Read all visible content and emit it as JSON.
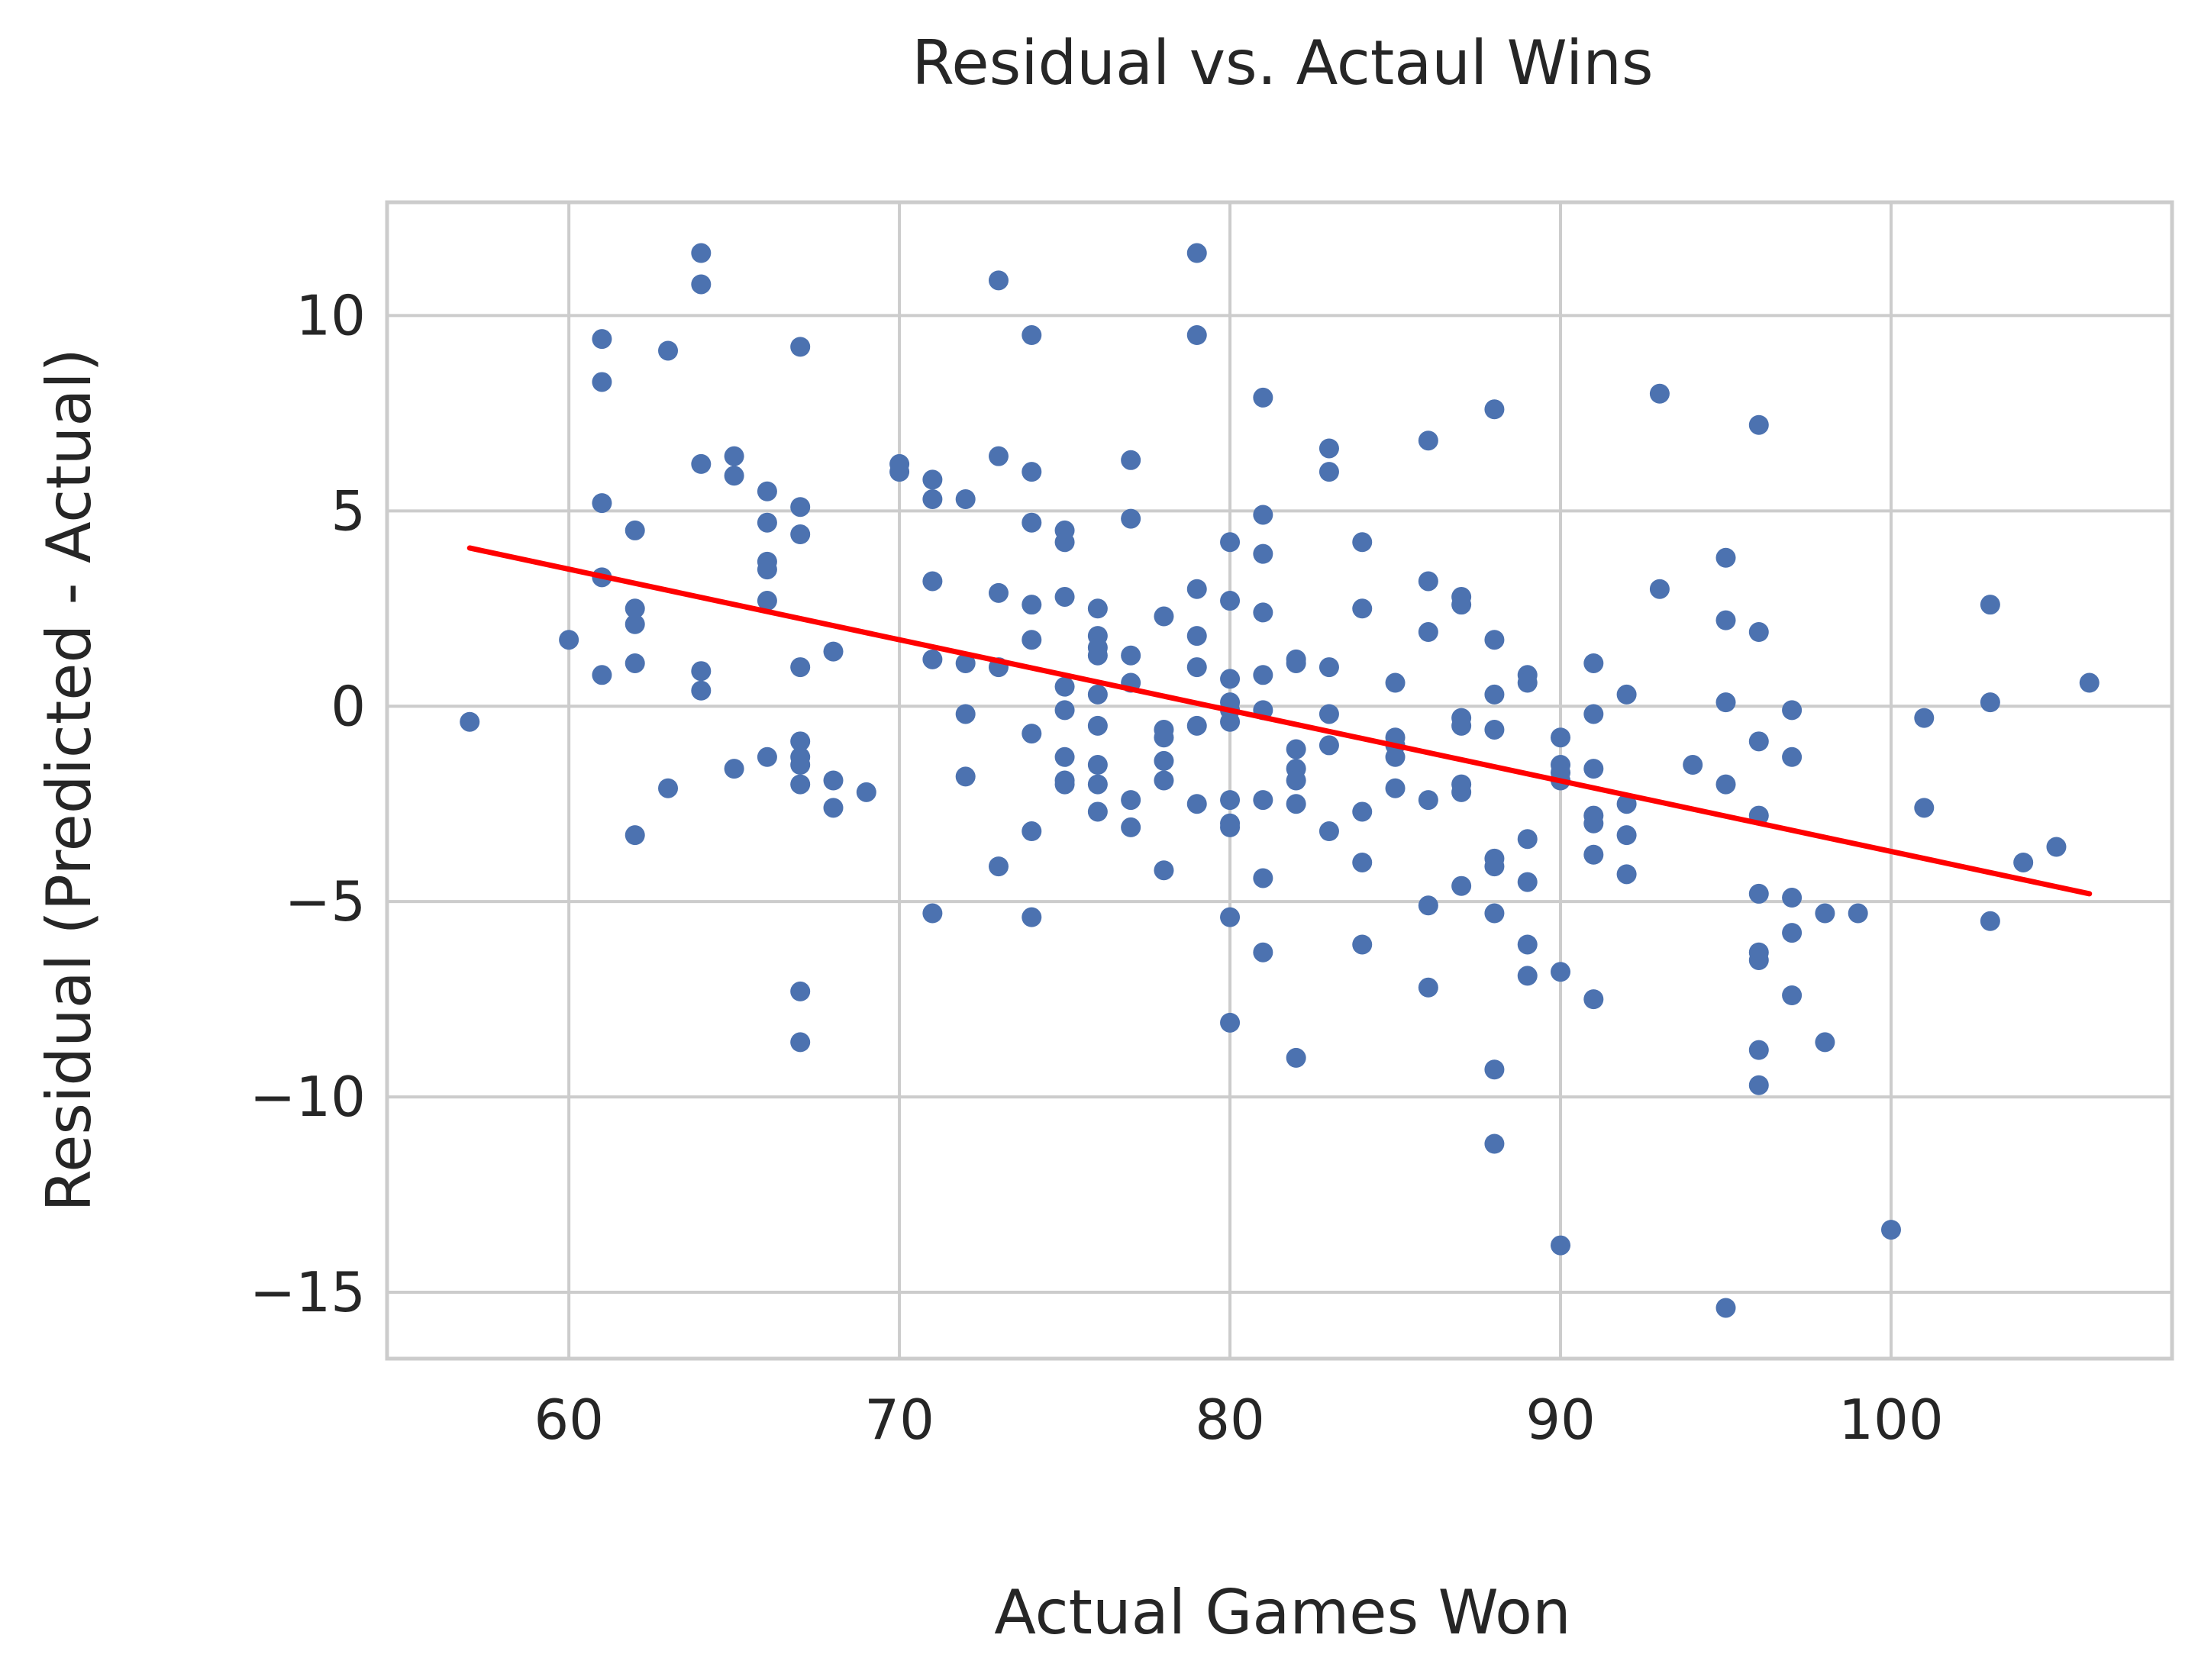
{
  "chart_data": {
    "type": "scatter",
    "title": "Residual vs. Actaul Wins",
    "xlabel": "Actual Games Won",
    "ylabel": "Residual (Predicted - Actual)",
    "xlim": [
      54.5,
      108.5
    ],
    "ylim": [
      -16.7,
      12.9
    ],
    "xticks": [
      60,
      70,
      80,
      90,
      100
    ],
    "xtick_labels": [
      "60",
      "70",
      "80",
      "90",
      "100"
    ],
    "yticks": [
      10,
      5,
      0,
      -5,
      -10,
      -15
    ],
    "ytick_labels": [
      "10",
      "5",
      "0",
      "−5",
      "−10",
      "−15"
    ],
    "grid": true,
    "colors": {
      "points": "#4c72b0",
      "fit_line": "#ff0000",
      "grid": "#cccccc",
      "text": "#262626"
    },
    "series": [
      {
        "kind": "scatter",
        "points": [
          [
            57,
            -0.4
          ],
          [
            60,
            1.7
          ],
          [
            61,
            9.4
          ],
          [
            61,
            8.3
          ],
          [
            61,
            5.2
          ],
          [
            61,
            3.3
          ],
          [
            61,
            0.8
          ],
          [
            62,
            4.5
          ],
          [
            62,
            2.5
          ],
          [
            62,
            2.1
          ],
          [
            62,
            1.1
          ],
          [
            62,
            -3.3
          ],
          [
            63,
            9.1
          ],
          [
            63,
            -2.1
          ],
          [
            64,
            11.6
          ],
          [
            64,
            10.8
          ],
          [
            64,
            6.2
          ],
          [
            64,
            0.9
          ],
          [
            64,
            0.4
          ],
          [
            65,
            6.4
          ],
          [
            65,
            5.9
          ],
          [
            65,
            -1.6
          ],
          [
            66,
            5.5
          ],
          [
            66,
            4.7
          ],
          [
            66,
            3.7
          ],
          [
            66,
            3.5
          ],
          [
            66,
            2.7
          ],
          [
            66,
            -1.3
          ],
          [
            67,
            9.2
          ],
          [
            67,
            5.1
          ],
          [
            67,
            4.4
          ],
          [
            67,
            1.0
          ],
          [
            67,
            -0.9
          ],
          [
            67,
            -1.3
          ],
          [
            67,
            -1.5
          ],
          [
            67,
            -2.0
          ],
          [
            67,
            -7.3
          ],
          [
            67,
            -8.6
          ],
          [
            68,
            1.4
          ],
          [
            68,
            -1.9
          ],
          [
            68,
            -2.6
          ],
          [
            69,
            -2.2
          ],
          [
            70,
            6.2
          ],
          [
            70,
            6.0
          ],
          [
            71,
            5.8
          ],
          [
            71,
            5.3
          ],
          [
            71,
            3.2
          ],
          [
            71,
            1.2
          ],
          [
            71,
            -5.3
          ],
          [
            72,
            5.3
          ],
          [
            72,
            1.1
          ],
          [
            72,
            -0.2
          ],
          [
            72,
            -1.8
          ],
          [
            73,
            10.9
          ],
          [
            73,
            6.4
          ],
          [
            73,
            2.9
          ],
          [
            73,
            1.0
          ],
          [
            73,
            -4.1
          ],
          [
            74,
            9.5
          ],
          [
            74,
            6.0
          ],
          [
            74,
            4.7
          ],
          [
            74,
            2.6
          ],
          [
            74,
            1.7
          ],
          [
            74,
            -0.7
          ],
          [
            74,
            -3.2
          ],
          [
            74,
            -5.4
          ],
          [
            75,
            4.5
          ],
          [
            75,
            4.2
          ],
          [
            75,
            2.8
          ],
          [
            75,
            0.5
          ],
          [
            75,
            -0.1
          ],
          [
            75,
            -1.3
          ],
          [
            75,
            -1.9
          ],
          [
            75,
            -2.0
          ],
          [
            76,
            2.5
          ],
          [
            76,
            1.8
          ],
          [
            76,
            1.5
          ],
          [
            76,
            1.3
          ],
          [
            76,
            0.3
          ],
          [
            76,
            -0.5
          ],
          [
            76,
            -1.5
          ],
          [
            76,
            -2.0
          ],
          [
            76,
            -2.7
          ],
          [
            77,
            6.3
          ],
          [
            77,
            4.8
          ],
          [
            77,
            1.3
          ],
          [
            77,
            0.6
          ],
          [
            77,
            -2.4
          ],
          [
            77,
            -3.1
          ],
          [
            78,
            2.3
          ],
          [
            78,
            -0.6
          ],
          [
            78,
            -0.8
          ],
          [
            78,
            -1.4
          ],
          [
            78,
            -1.9
          ],
          [
            78,
            -4.2
          ],
          [
            79,
            11.6
          ],
          [
            79,
            9.5
          ],
          [
            79,
            3.0
          ],
          [
            79,
            1.8
          ],
          [
            79,
            1.0
          ],
          [
            79,
            -0.5
          ],
          [
            79,
            -2.5
          ],
          [
            80,
            4.2
          ],
          [
            80,
            2.7
          ],
          [
            80,
            0.7
          ],
          [
            80,
            0.1
          ],
          [
            80,
            -0.1
          ],
          [
            80,
            -0.4
          ],
          [
            80,
            -2.4
          ],
          [
            80,
            -3.0
          ],
          [
            80,
            -3.1
          ],
          [
            80,
            -5.4
          ],
          [
            80,
            -8.1
          ],
          [
            81,
            7.9
          ],
          [
            81,
            4.9
          ],
          [
            81,
            3.9
          ],
          [
            81,
            2.4
          ],
          [
            81,
            0.8
          ],
          [
            81,
            -0.1
          ],
          [
            81,
            -2.4
          ],
          [
            81,
            -4.4
          ],
          [
            81,
            -6.3
          ],
          [
            82,
            1.2
          ],
          [
            82,
            1.1
          ],
          [
            82,
            -1.1
          ],
          [
            82,
            -1.6
          ],
          [
            82,
            -1.9
          ],
          [
            82,
            -2.5
          ],
          [
            82,
            -9.0
          ],
          [
            83,
            6.6
          ],
          [
            83,
            6.0
          ],
          [
            83,
            1.0
          ],
          [
            83,
            -0.2
          ],
          [
            83,
            -1.0
          ],
          [
            83,
            -3.2
          ],
          [
            84,
            4.2
          ],
          [
            84,
            2.5
          ],
          [
            84,
            -2.7
          ],
          [
            84,
            -4.0
          ],
          [
            84,
            -6.1
          ],
          [
            85,
            0.6
          ],
          [
            85,
            -0.8
          ],
          [
            85,
            -1.0
          ],
          [
            85,
            -1.3
          ],
          [
            85,
            -2.1
          ],
          [
            86,
            6.8
          ],
          [
            86,
            3.2
          ],
          [
            86,
            1.9
          ],
          [
            86,
            -2.4
          ],
          [
            86,
            -5.1
          ],
          [
            86,
            -7.2
          ],
          [
            87,
            2.8
          ],
          [
            87,
            2.6
          ],
          [
            87,
            -0.3
          ],
          [
            87,
            -0.5
          ],
          [
            87,
            -2.0
          ],
          [
            87,
            -2.2
          ],
          [
            87,
            -4.6
          ],
          [
            88,
            7.6
          ],
          [
            88,
            1.7
          ],
          [
            88,
            0.3
          ],
          [
            88,
            -0.6
          ],
          [
            88,
            -3.9
          ],
          [
            88,
            -4.1
          ],
          [
            88,
            -5.3
          ],
          [
            88,
            -9.3
          ],
          [
            88,
            -11.2
          ],
          [
            89,
            0.8
          ],
          [
            89,
            0.6
          ],
          [
            89,
            -3.4
          ],
          [
            89,
            -4.5
          ],
          [
            89,
            -6.1
          ],
          [
            89,
            -6.9
          ],
          [
            90,
            -0.8
          ],
          [
            90,
            -1.5
          ],
          [
            90,
            -1.7
          ],
          [
            90,
            -1.9
          ],
          [
            90,
            -6.8
          ],
          [
            90,
            -13.8
          ],
          [
            91,
            1.1
          ],
          [
            91,
            -0.2
          ],
          [
            91,
            -1.6
          ],
          [
            91,
            -2.8
          ],
          [
            91,
            -3.0
          ],
          [
            91,
            -3.8
          ],
          [
            91,
            -7.5
          ],
          [
            92,
            0.3
          ],
          [
            92,
            -2.5
          ],
          [
            92,
            -3.3
          ],
          [
            92,
            -4.3
          ],
          [
            93,
            8.0
          ],
          [
            93,
            3.0
          ],
          [
            94,
            -1.5
          ],
          [
            95,
            3.8
          ],
          [
            95,
            2.2
          ],
          [
            95,
            0.1
          ],
          [
            95,
            -2.0
          ],
          [
            95,
            -15.4
          ],
          [
            96,
            7.2
          ],
          [
            96,
            1.9
          ],
          [
            96,
            -0.9
          ],
          [
            96,
            -2.8
          ],
          [
            96,
            -4.8
          ],
          [
            96,
            -6.3
          ],
          [
            96,
            -6.5
          ],
          [
            96,
            -8.8
          ],
          [
            96,
            -9.7
          ],
          [
            97,
            -0.1
          ],
          [
            97,
            -1.3
          ],
          [
            97,
            -4.9
          ],
          [
            97,
            -5.8
          ],
          [
            97,
            -7.4
          ],
          [
            98,
            -5.3
          ],
          [
            98,
            -8.6
          ],
          [
            99,
            -5.3
          ],
          [
            100,
            -13.4
          ],
          [
            101,
            -0.3
          ],
          [
            101,
            -2.6
          ],
          [
            103,
            2.6
          ],
          [
            103,
            0.1
          ],
          [
            103,
            -5.5
          ],
          [
            104,
            -4.0
          ],
          [
            105,
            -3.6
          ],
          [
            106,
            0.6
          ]
        ]
      },
      {
        "kind": "line",
        "x": [
          57,
          106
        ],
        "y": [
          4.05,
          -4.8
        ]
      }
    ]
  }
}
